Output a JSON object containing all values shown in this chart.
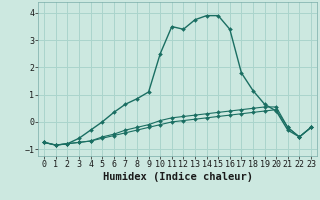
{
  "xlabel": "Humidex (Indice chaleur)",
  "ylabel": "",
  "xlim": [
    -0.5,
    23.5
  ],
  "ylim": [
    -1.25,
    4.4
  ],
  "bg_color": "#cce8e0",
  "grid_color": "#aad4cc",
  "line_color": "#1a6e62",
  "xticks": [
    0,
    1,
    2,
    3,
    4,
    5,
    6,
    7,
    8,
    9,
    10,
    11,
    12,
    13,
    14,
    15,
    16,
    17,
    18,
    19,
    20,
    21,
    22,
    23
  ],
  "yticks": [
    -1,
    0,
    1,
    2,
    3,
    4
  ],
  "line1_x": [
    0,
    1,
    2,
    3,
    4,
    5,
    6,
    7,
    8,
    9,
    10,
    11,
    12,
    13,
    14,
    15,
    16,
    17,
    18,
    19,
    20,
    21,
    22,
    23
  ],
  "line1_y": [
    -0.75,
    -0.85,
    -0.8,
    -0.6,
    -0.3,
    0.0,
    0.35,
    0.65,
    0.85,
    1.1,
    2.5,
    3.5,
    3.4,
    3.75,
    3.9,
    3.9,
    3.4,
    1.8,
    1.15,
    0.65,
    0.4,
    -0.3,
    -0.55,
    -0.2
  ],
  "line2_x": [
    0,
    1,
    2,
    3,
    4,
    5,
    6,
    7,
    8,
    9,
    10,
    11,
    12,
    13,
    14,
    15,
    16,
    17,
    18,
    19,
    20,
    21,
    22,
    23
  ],
  "line2_y": [
    -0.75,
    -0.85,
    -0.8,
    -0.75,
    -0.7,
    -0.55,
    -0.45,
    -0.3,
    -0.2,
    -0.1,
    0.05,
    0.15,
    0.2,
    0.25,
    0.3,
    0.35,
    0.4,
    0.45,
    0.5,
    0.55,
    0.55,
    -0.2,
    -0.55,
    -0.2
  ],
  "line3_x": [
    0,
    1,
    2,
    3,
    4,
    5,
    6,
    7,
    8,
    9,
    10,
    11,
    12,
    13,
    14,
    15,
    16,
    17,
    18,
    19,
    20,
    21,
    22,
    23
  ],
  "line3_y": [
    -0.75,
    -0.85,
    -0.8,
    -0.75,
    -0.7,
    -0.6,
    -0.5,
    -0.4,
    -0.3,
    -0.2,
    -0.1,
    0.0,
    0.05,
    0.1,
    0.15,
    0.2,
    0.25,
    0.3,
    0.35,
    0.4,
    0.45,
    -0.2,
    -0.55,
    -0.2
  ],
  "font_family": "monospace",
  "xlabel_fontsize": 7.5,
  "tick_fontsize": 6.0
}
